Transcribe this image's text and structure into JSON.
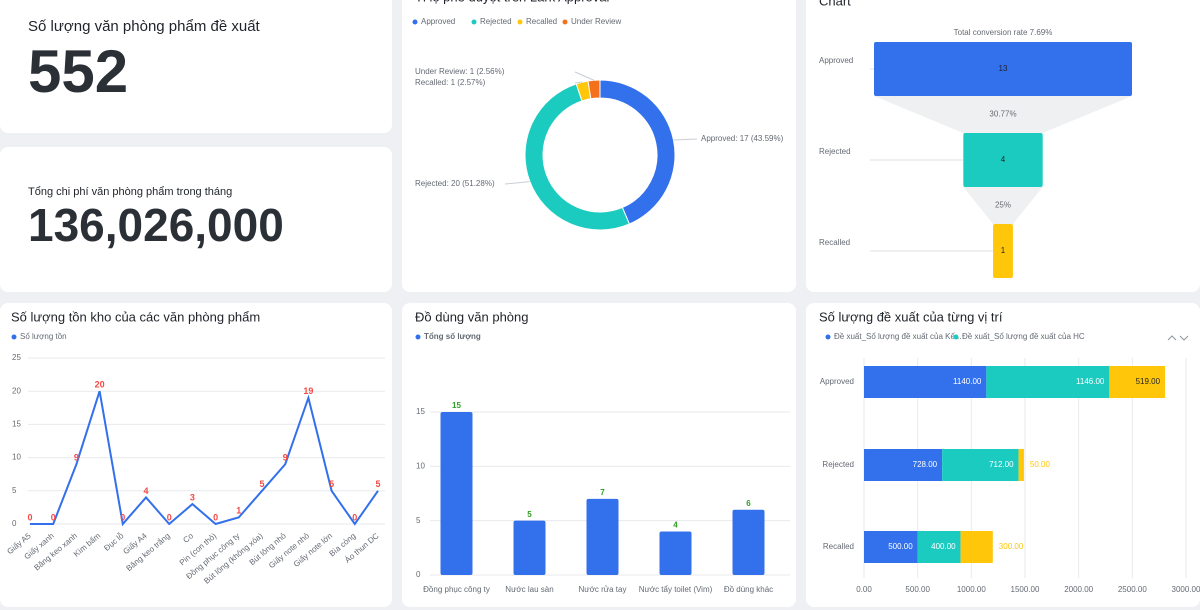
{
  "kpis": [
    {
      "label": "Số lượng văn phòng phẩm đề xuất",
      "value": "552"
    },
    {
      "label": "Tổng chi phí văn phòng phẩm trong tháng",
      "value": "136,026,000"
    }
  ],
  "chart_data": [
    {
      "type": "donut",
      "title": "Tỉ lệ phê duyệt trên Lark Approval",
      "categories": [
        "Approved",
        "Rejected",
        "Recalled",
        "Under Review"
      ],
      "values": [
        17,
        20,
        1,
        1
      ],
      "value_labels": [
        "Approved: 17 (43.59%)",
        "Rejected: 20 (51.28%)",
        "Recalled: 1 (2.57%)",
        "Under Review: 1 (2.56%)"
      ],
      "colors": [
        "#3370eb",
        "#1ccbc0",
        "#ffc60a",
        "#f5701a"
      ],
      "legend": "top"
    },
    {
      "type": "funnel",
      "title": "Chart",
      "annotation": "Total conversion rate 7.69%",
      "categories": [
        "Approved",
        "Rejected",
        "Recalled"
      ],
      "values": [
        13,
        4,
        1
      ],
      "conversion_labels": [
        "30.77%",
        "25%"
      ],
      "colors": [
        "#3370eb",
        "#1ccbc0",
        "#ffc60a"
      ]
    },
    {
      "type": "line",
      "title": "Số lượng tồn kho của các văn phòng phẩm",
      "categories": [
        "Giấy A5",
        "Giấy xanh",
        "Băng keo xanh",
        "Kìm bấm",
        "Đục lỗ",
        "Giấy A4",
        "Băng keo trắng",
        "Co",
        "Pin (con thỏ)",
        "Đồng phục công ty",
        "Bút lông (không xóa)",
        "Bút lông nhỏ",
        "Giấy note nhỏ",
        "Giấy note lớn",
        "Bìa còng",
        "Áo thun DC"
      ],
      "series": [
        {
          "name": "Số lượng tồn",
          "color": "#3370eb",
          "values": [
            0,
            0,
            9,
            20,
            0,
            4,
            0,
            3,
            0,
            1,
            5,
            9,
            19,
            5,
            0,
            5
          ]
        }
      ],
      "label_color": "#f54a45",
      "ylim": [
        0,
        25
      ],
      "yticks": [
        0,
        5,
        10,
        15,
        20,
        25
      ],
      "grid": true
    },
    {
      "type": "bar",
      "title": "Đồ dùng văn phòng",
      "categories": [
        "Đồng phục công ty",
        "Nước lau sàn",
        "Nước rửa tay",
        "Nước tẩy toilet (Vim)",
        "Đồ dùng khác"
      ],
      "series": [
        {
          "name": "Tổng số lượng",
          "color": "#3370eb",
          "values": [
            15,
            5,
            7,
            4,
            6
          ]
        }
      ],
      "label_color": "#2ea121",
      "ylim": [
        0,
        15
      ],
      "yticks": [
        0,
        5,
        10,
        15
      ],
      "grid": true
    },
    {
      "type": "barh",
      "title": "Số lượng đề xuất của từng vị trí",
      "stacked": true,
      "categories": [
        "Approved",
        "Rejected",
        "Recalled"
      ],
      "series": [
        {
          "name": "Đề xuất_Số lượng đề xuất của Kế...",
          "color": "#3370eb",
          "values": [
            1140,
            728,
            500
          ],
          "value_labels": [
            "1140.00",
            "728.00",
            "500.00"
          ]
        },
        {
          "name": "Đề xuất_Số lượng đề xuất của HC",
          "color": "#1ccbc0",
          "values": [
            1146,
            712,
            400
          ],
          "value_labels": [
            "1146.00",
            "712.00",
            "400.00"
          ]
        },
        {
          "color": "#ffc60a",
          "values": [
            519,
            50,
            300
          ],
          "value_labels": [
            "519.00",
            "50.00",
            "300.00"
          ]
        }
      ],
      "xlim": [
        0,
        3000
      ],
      "xticks": [
        {
          "value": 0,
          "label": "0.00"
        },
        {
          "value": 500,
          "label": "500.00"
        },
        {
          "value": 1000,
          "label": "1000.00"
        },
        {
          "value": 1500,
          "label": "1500.00"
        },
        {
          "value": 2000,
          "label": "2000.00"
        },
        {
          "value": 2500,
          "label": "2500.00"
        },
        {
          "value": 3000,
          "label": "3000.00"
        }
      ],
      "grid": true
    }
  ]
}
